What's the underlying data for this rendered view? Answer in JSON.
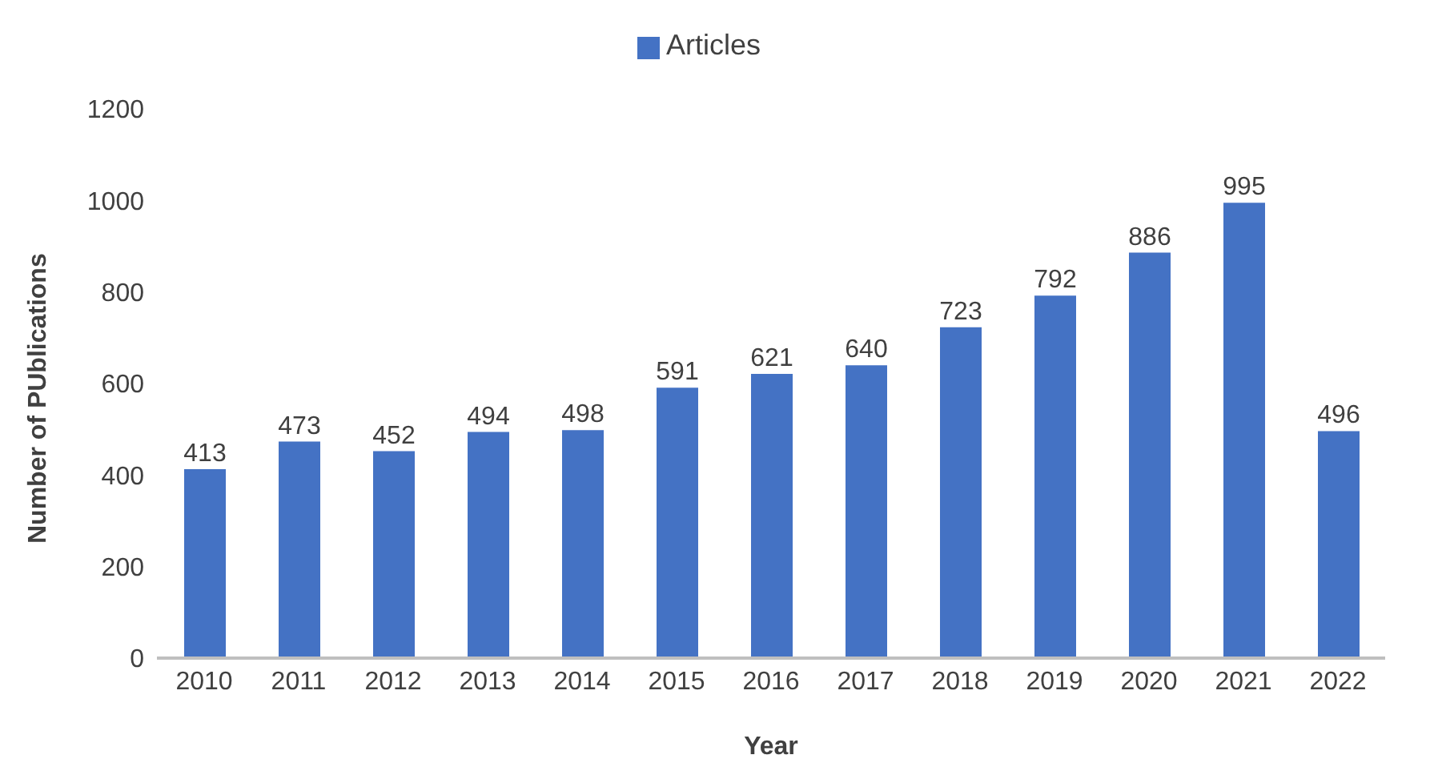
{
  "chart_data": {
    "type": "bar",
    "xlabel": "Year",
    "ylabel": "Number of PUblications",
    "categories": [
      "2010",
      "2011",
      "2012",
      "2013",
      "2014",
      "2015",
      "2016",
      "2017",
      "2018",
      "2019",
      "2020",
      "2021",
      "2022"
    ],
    "series": [
      {
        "name": "Articles",
        "color": "#4472c4",
        "values": [
          413,
          473,
          452,
          494,
          498,
          591,
          621,
          640,
          723,
          792,
          886,
          995,
          496
        ]
      }
    ],
    "ylim": [
      0,
      1200
    ],
    "yticks": [
      0,
      200,
      400,
      600,
      800,
      1000,
      1200
    ],
    "grid": false,
    "legend": "top",
    "data_labels": true
  }
}
